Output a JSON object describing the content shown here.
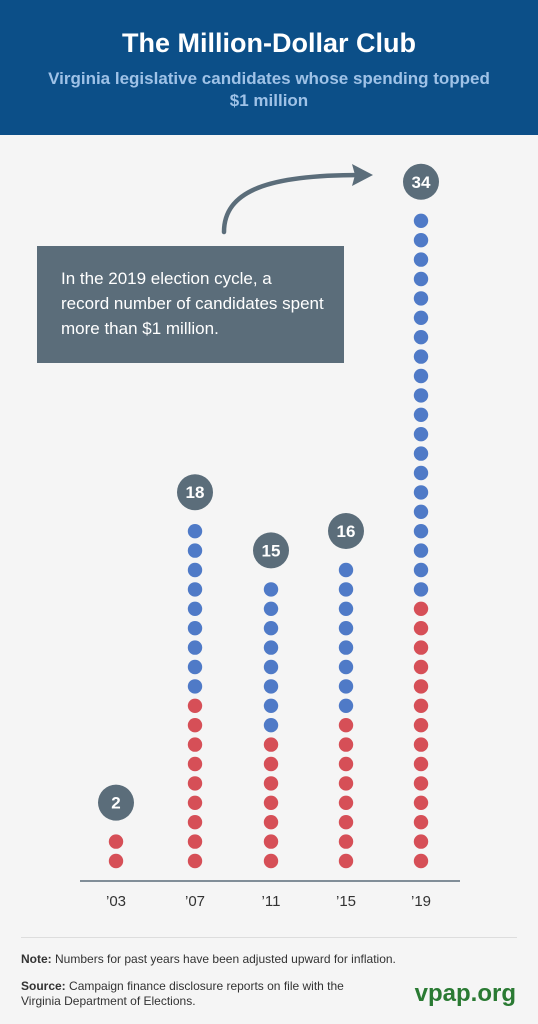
{
  "header": {
    "title": "The Million-Dollar Club",
    "subtitle": "Virginia legislative candidates whose spending topped $1 million"
  },
  "callout": {
    "text": "In the 2019 election cycle, a record number of candidates spent more than $1 million."
  },
  "footer": {
    "note_label": "Note:",
    "note_text": "Numbers for past years have been adjusted upward for inflation.",
    "source_label": "Source:",
    "source_text": "Campaign finance disclosure reports on file with the Virginia Department of Elections.",
    "brand": "vpap.org"
  },
  "colors": {
    "blue": "#4f7ac7",
    "red": "#d64f57",
    "badge": "#5b6d7a",
    "axis": "#5b6d7a",
    "arrow": "#5b6d7a"
  },
  "chart_data": {
    "type": "bar",
    "title": "The Million-Dollar Club",
    "subtitle": "Virginia legislative candidates whose spending topped $1 million",
    "categories": [
      "’03",
      "’07",
      "’11",
      "’15",
      "’19"
    ],
    "totals": [
      2,
      18,
      15,
      16,
      34
    ],
    "series": [
      {
        "color": "#d64f57",
        "values": [
          2,
          9,
          7,
          8,
          14
        ]
      },
      {
        "color": "#4f7ac7",
        "values": [
          0,
          9,
          8,
          8,
          20
        ]
      }
    ],
    "grid": false
  }
}
